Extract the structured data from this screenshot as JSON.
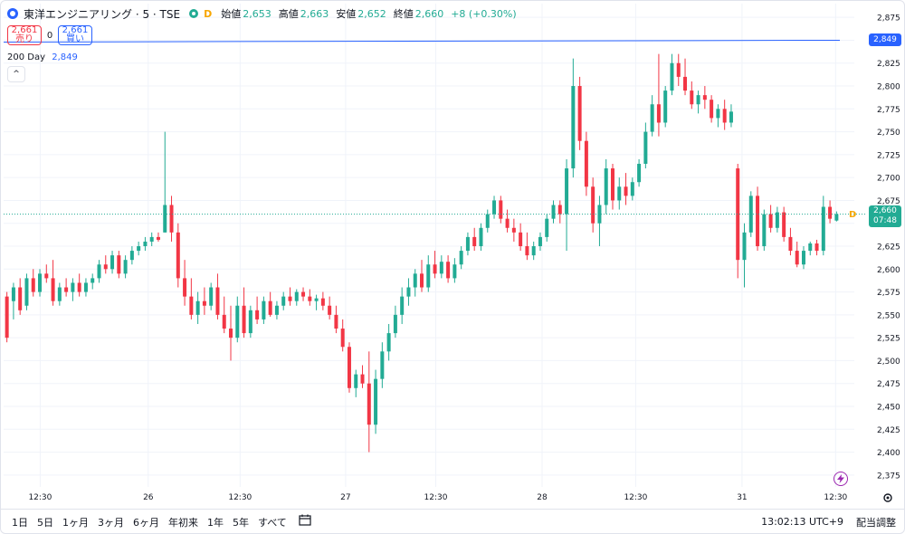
{
  "legend": {
    "title": "東洋エンジニアリング · 5 · TSE",
    "badge": "D",
    "open_label": "始値",
    "open_value": "2,653",
    "high_label": "高値",
    "high_value": "2,663",
    "low_label": "安値",
    "low_value": "2,652",
    "close_label": "終値",
    "close_value": "2,660",
    "change": "+8 (+0.30%)"
  },
  "trade": {
    "sell_price": "2,661",
    "sell_label": "売り",
    "spread": "0",
    "buy_price": "2,661",
    "buy_label": "買い"
  },
  "indicator": {
    "name": "200 Day",
    "value": "2,849",
    "collapse_icon": "^"
  },
  "price_tags": {
    "ma": "2,849",
    "last": "2,660",
    "countdown": "07:48",
    "dividend_marker": "D"
  },
  "toolbar": {
    "ranges": [
      "1日",
      "5日",
      "1ヶ月",
      "3ヶ月",
      "6ヶ月",
      "年初来",
      "1年",
      "5年",
      "すべて"
    ],
    "time": "13:02:13 UTC+9",
    "adjust": "配当調整"
  },
  "colors": {
    "up": "#22ab94",
    "down": "#f23645",
    "ma": "#2962ff",
    "grid": "#f0f3fa",
    "text": "#131722"
  },
  "icons": {
    "compare": "calendar-range-icon",
    "flash": "lightning-icon",
    "settings": "gear-icon"
  },
  "chart_data": {
    "type": "candlestick",
    "y_axis": {
      "range": [
        2362,
        2890
      ],
      "ticks": [
        "2,875",
        "2,850",
        "2,825",
        "2,800",
        "2,775",
        "2,750",
        "2,725",
        "2,700",
        "2,675",
        "2,650",
        "2,625",
        "2,600",
        "2,575",
        "2,550",
        "2,525",
        "2,500",
        "2,475",
        "2,450",
        "2,425",
        "2,400",
        "2,375"
      ]
    },
    "x_axis": {
      "ticks": [
        "12:30",
        "26",
        "12:30",
        "27",
        "12:30",
        "28",
        "12:30",
        "31",
        "12:30"
      ]
    },
    "moving_average": {
      "name": "200 Day",
      "start": 2848,
      "end": 2850,
      "last": 2849
    },
    "last_price": 2660,
    "candles": [
      {
        "o": 2570,
        "h": 2575,
        "l": 2520,
        "c": 2525
      },
      {
        "o": 2565,
        "h": 2585,
        "l": 2545,
        "c": 2580
      },
      {
        "o": 2580,
        "h": 2590,
        "l": 2550,
        "c": 2555
      },
      {
        "o": 2560,
        "h": 2595,
        "l": 2555,
        "c": 2590
      },
      {
        "o": 2590,
        "h": 2600,
        "l": 2570,
        "c": 2575
      },
      {
        "o": 2575,
        "h": 2600,
        "l": 2570,
        "c": 2595
      },
      {
        "o": 2595,
        "h": 2605,
        "l": 2585,
        "c": 2590
      },
      {
        "o": 2590,
        "h": 2610,
        "l": 2560,
        "c": 2565
      },
      {
        "o": 2565,
        "h": 2585,
        "l": 2560,
        "c": 2580
      },
      {
        "o": 2580,
        "h": 2590,
        "l": 2570,
        "c": 2575
      },
      {
        "o": 2575,
        "h": 2590,
        "l": 2565,
        "c": 2585
      },
      {
        "o": 2585,
        "h": 2595,
        "l": 2570,
        "c": 2575
      },
      {
        "o": 2575,
        "h": 2590,
        "l": 2570,
        "c": 2585
      },
      {
        "o": 2585,
        "h": 2595,
        "l": 2578,
        "c": 2590
      },
      {
        "o": 2590,
        "h": 2610,
        "l": 2585,
        "c": 2605
      },
      {
        "o": 2605,
        "h": 2615,
        "l": 2595,
        "c": 2600
      },
      {
        "o": 2600,
        "h": 2620,
        "l": 2595,
        "c": 2615
      },
      {
        "o": 2615,
        "h": 2620,
        "l": 2590,
        "c": 2595
      },
      {
        "o": 2595,
        "h": 2615,
        "l": 2590,
        "c": 2610
      },
      {
        "o": 2610,
        "h": 2625,
        "l": 2605,
        "c": 2620
      },
      {
        "o": 2620,
        "h": 2630,
        "l": 2615,
        "c": 2625
      },
      {
        "o": 2625,
        "h": 2635,
        "l": 2620,
        "c": 2630
      },
      {
        "o": 2630,
        "h": 2640,
        "l": 2625,
        "c": 2635
      },
      {
        "o": 2635,
        "h": 2640,
        "l": 2630,
        "c": 2632
      },
      {
        "o": 2640,
        "h": 2750,
        "l": 2640,
        "c": 2670
      },
      {
        "o": 2670,
        "h": 2680,
        "l": 2630,
        "c": 2640
      },
      {
        "o": 2640,
        "h": 2650,
        "l": 2580,
        "c": 2590
      },
      {
        "o": 2590,
        "h": 2610,
        "l": 2560,
        "c": 2570
      },
      {
        "o": 2570,
        "h": 2590,
        "l": 2545,
        "c": 2550
      },
      {
        "o": 2550,
        "h": 2575,
        "l": 2540,
        "c": 2565
      },
      {
        "o": 2565,
        "h": 2580,
        "l": 2550,
        "c": 2560
      },
      {
        "o": 2560,
        "h": 2585,
        "l": 2555,
        "c": 2580
      },
      {
        "o": 2580,
        "h": 2595,
        "l": 2545,
        "c": 2550
      },
      {
        "o": 2550,
        "h": 2570,
        "l": 2530,
        "c": 2535
      },
      {
        "o": 2535,
        "h": 2560,
        "l": 2500,
        "c": 2525
      },
      {
        "o": 2525,
        "h": 2570,
        "l": 2520,
        "c": 2560
      },
      {
        "o": 2560,
        "h": 2580,
        "l": 2525,
        "c": 2530
      },
      {
        "o": 2530,
        "h": 2560,
        "l": 2525,
        "c": 2555
      },
      {
        "o": 2555,
        "h": 2570,
        "l": 2540,
        "c": 2545
      },
      {
        "o": 2545,
        "h": 2570,
        "l": 2540,
        "c": 2565
      },
      {
        "o": 2565,
        "h": 2575,
        "l": 2548,
        "c": 2550
      },
      {
        "o": 2550,
        "h": 2565,
        "l": 2545,
        "c": 2560
      },
      {
        "o": 2560,
        "h": 2575,
        "l": 2555,
        "c": 2570
      },
      {
        "o": 2570,
        "h": 2580,
        "l": 2560,
        "c": 2565
      },
      {
        "o": 2565,
        "h": 2578,
        "l": 2560,
        "c": 2575
      },
      {
        "o": 2575,
        "h": 2580,
        "l": 2565,
        "c": 2570
      },
      {
        "o": 2570,
        "h": 2578,
        "l": 2560,
        "c": 2565
      },
      {
        "o": 2565,
        "h": 2572,
        "l": 2555,
        "c": 2568
      },
      {
        "o": 2568,
        "h": 2575,
        "l": 2555,
        "c": 2560
      },
      {
        "o": 2560,
        "h": 2570,
        "l": 2545,
        "c": 2550
      },
      {
        "o": 2550,
        "h": 2560,
        "l": 2530,
        "c": 2535
      },
      {
        "o": 2535,
        "h": 2545,
        "l": 2510,
        "c": 2515
      },
      {
        "o": 2515,
        "h": 2520,
        "l": 2465,
        "c": 2470
      },
      {
        "o": 2470,
        "h": 2490,
        "l": 2460,
        "c": 2485
      },
      {
        "o": 2485,
        "h": 2495,
        "l": 2470,
        "c": 2475
      },
      {
        "o": 2475,
        "h": 2510,
        "l": 2400,
        "c": 2430
      },
      {
        "o": 2430,
        "h": 2490,
        "l": 2420,
        "c": 2480
      },
      {
        "o": 2480,
        "h": 2520,
        "l": 2470,
        "c": 2510
      },
      {
        "o": 2510,
        "h": 2540,
        "l": 2500,
        "c": 2530
      },
      {
        "o": 2530,
        "h": 2560,
        "l": 2525,
        "c": 2550
      },
      {
        "o": 2550,
        "h": 2580,
        "l": 2540,
        "c": 2570
      },
      {
        "o": 2570,
        "h": 2590,
        "l": 2560,
        "c": 2580
      },
      {
        "o": 2580,
        "h": 2600,
        "l": 2570,
        "c": 2595
      },
      {
        "o": 2595,
        "h": 2610,
        "l": 2575,
        "c": 2580
      },
      {
        "o": 2580,
        "h": 2615,
        "l": 2575,
        "c": 2605
      },
      {
        "o": 2605,
        "h": 2620,
        "l": 2590,
        "c": 2595
      },
      {
        "o": 2595,
        "h": 2615,
        "l": 2590,
        "c": 2608
      },
      {
        "o": 2608,
        "h": 2615,
        "l": 2585,
        "c": 2590
      },
      {
        "o": 2590,
        "h": 2612,
        "l": 2585,
        "c": 2605
      },
      {
        "o": 2605,
        "h": 2625,
        "l": 2600,
        "c": 2620
      },
      {
        "o": 2620,
        "h": 2640,
        "l": 2615,
        "c": 2635
      },
      {
        "o": 2635,
        "h": 2645,
        "l": 2620,
        "c": 2625
      },
      {
        "o": 2625,
        "h": 2650,
        "l": 2620,
        "c": 2645
      },
      {
        "o": 2645,
        "h": 2665,
        "l": 2640,
        "c": 2660
      },
      {
        "o": 2660,
        "h": 2680,
        "l": 2655,
        "c": 2675
      },
      {
        "o": 2675,
        "h": 2680,
        "l": 2650,
        "c": 2655
      },
      {
        "o": 2655,
        "h": 2665,
        "l": 2640,
        "c": 2645
      },
      {
        "o": 2645,
        "h": 2655,
        "l": 2630,
        "c": 2640
      },
      {
        "o": 2640,
        "h": 2650,
        "l": 2620,
        "c": 2625
      },
      {
        "o": 2625,
        "h": 2640,
        "l": 2610,
        "c": 2615
      },
      {
        "o": 2615,
        "h": 2630,
        "l": 2610,
        "c": 2625
      },
      {
        "o": 2625,
        "h": 2640,
        "l": 2620,
        "c": 2635
      },
      {
        "o": 2635,
        "h": 2660,
        "l": 2630,
        "c": 2655
      },
      {
        "o": 2655,
        "h": 2675,
        "l": 2650,
        "c": 2670
      },
      {
        "o": 2670,
        "h": 2675,
        "l": 2650,
        "c": 2660
      },
      {
        "o": 2660,
        "h": 2720,
        "l": 2620,
        "c": 2710
      },
      {
        "o": 2710,
        "h": 2830,
        "l": 2700,
        "c": 2800
      },
      {
        "o": 2800,
        "h": 2810,
        "l": 2730,
        "c": 2740
      },
      {
        "o": 2740,
        "h": 2750,
        "l": 2680,
        "c": 2690
      },
      {
        "o": 2690,
        "h": 2700,
        "l": 2640,
        "c": 2650
      },
      {
        "o": 2650,
        "h": 2680,
        "l": 2625,
        "c": 2670
      },
      {
        "o": 2670,
        "h": 2720,
        "l": 2660,
        "c": 2710
      },
      {
        "o": 2710,
        "h": 2715,
        "l": 2665,
        "c": 2675
      },
      {
        "o": 2675,
        "h": 2700,
        "l": 2665,
        "c": 2690
      },
      {
        "o": 2690,
        "h": 2705,
        "l": 2670,
        "c": 2680
      },
      {
        "o": 2680,
        "h": 2700,
        "l": 2675,
        "c": 2695
      },
      {
        "o": 2695,
        "h": 2720,
        "l": 2690,
        "c": 2715
      },
      {
        "o": 2715,
        "h": 2760,
        "l": 2710,
        "c": 2750
      },
      {
        "o": 2750,
        "h": 2790,
        "l": 2745,
        "c": 2780
      },
      {
        "o": 2780,
        "h": 2835,
        "l": 2745,
        "c": 2760
      },
      {
        "o": 2760,
        "h": 2800,
        "l": 2755,
        "c": 2795
      },
      {
        "o": 2795,
        "h": 2835,
        "l": 2790,
        "c": 2825
      },
      {
        "o": 2825,
        "h": 2835,
        "l": 2800,
        "c": 2810
      },
      {
        "o": 2810,
        "h": 2830,
        "l": 2790,
        "c": 2795
      },
      {
        "o": 2795,
        "h": 2805,
        "l": 2775,
        "c": 2780
      },
      {
        "o": 2780,
        "h": 2795,
        "l": 2770,
        "c": 2790
      },
      {
        "o": 2790,
        "h": 2800,
        "l": 2775,
        "c": 2785
      },
      {
        "o": 2785,
        "h": 2790,
        "l": 2760,
        "c": 2765
      },
      {
        "o": 2765,
        "h": 2780,
        "l": 2755,
        "c": 2775
      },
      {
        "o": 2775,
        "h": 2785,
        "l": 2752,
        "c": 2760
      },
      {
        "o": 2760,
        "h": 2780,
        "l": 2755,
        "c": 2772
      },
      {
        "o": 2710,
        "h": 2715,
        "l": 2590,
        "c": 2610
      },
      {
        "o": 2610,
        "h": 2650,
        "l": 2580,
        "c": 2640
      },
      {
        "o": 2640,
        "h": 2685,
        "l": 2635,
        "c": 2680
      },
      {
        "o": 2680,
        "h": 2690,
        "l": 2620,
        "c": 2625
      },
      {
        "o": 2625,
        "h": 2665,
        "l": 2620,
        "c": 2660
      },
      {
        "o": 2660,
        "h": 2670,
        "l": 2640,
        "c": 2645
      },
      {
        "o": 2645,
        "h": 2668,
        "l": 2640,
        "c": 2662
      },
      {
        "o": 2662,
        "h": 2668,
        "l": 2630,
        "c": 2635
      },
      {
        "o": 2635,
        "h": 2645,
        "l": 2615,
        "c": 2620
      },
      {
        "o": 2620,
        "h": 2630,
        "l": 2602,
        "c": 2605
      },
      {
        "o": 2605,
        "h": 2625,
        "l": 2600,
        "c": 2620
      },
      {
        "o": 2620,
        "h": 2630,
        "l": 2615,
        "c": 2628
      },
      {
        "o": 2628,
        "h": 2632,
        "l": 2615,
        "c": 2620
      },
      {
        "o": 2620,
        "h": 2680,
        "l": 2615,
        "c": 2668
      },
      {
        "o": 2668,
        "h": 2675,
        "l": 2650,
        "c": 2655
      },
      {
        "o": 2653,
        "h": 2663,
        "l": 2652,
        "c": 2660
      }
    ]
  }
}
